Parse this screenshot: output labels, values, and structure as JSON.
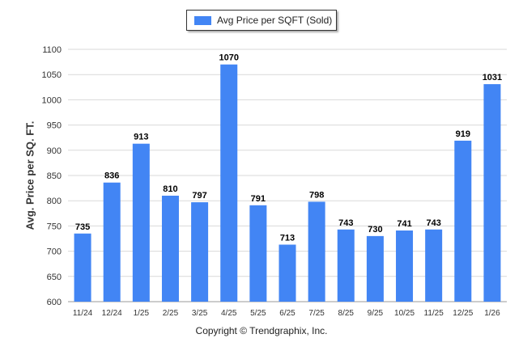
{
  "chart_data": {
    "type": "bar",
    "title": "",
    "legend": "Avg Price per SQFT (Sold)",
    "legend_placement": "top-center",
    "ylabel": "Avg. Price per SQ. FT.",
    "xlabel": "",
    "categories": [
      "11/24",
      "12/24",
      "1/25",
      "2/25",
      "3/25",
      "4/25",
      "5/25",
      "6/25",
      "7/25",
      "8/25",
      "9/25",
      "10/25",
      "11/25",
      "12/25",
      "1/26"
    ],
    "values": [
      735,
      836,
      913,
      810,
      797,
      1070,
      791,
      713,
      798,
      743,
      730,
      741,
      743,
      919,
      1031
    ],
    "ylim": [
      600,
      1100
    ],
    "yticks": [
      600,
      650,
      700,
      750,
      800,
      850,
      900,
      950,
      1000,
      1050,
      1100
    ],
    "grid": true,
    "bar_color": "#4285f4"
  },
  "footer": {
    "copyright": "Copyright © Trendgraphix, Inc."
  }
}
